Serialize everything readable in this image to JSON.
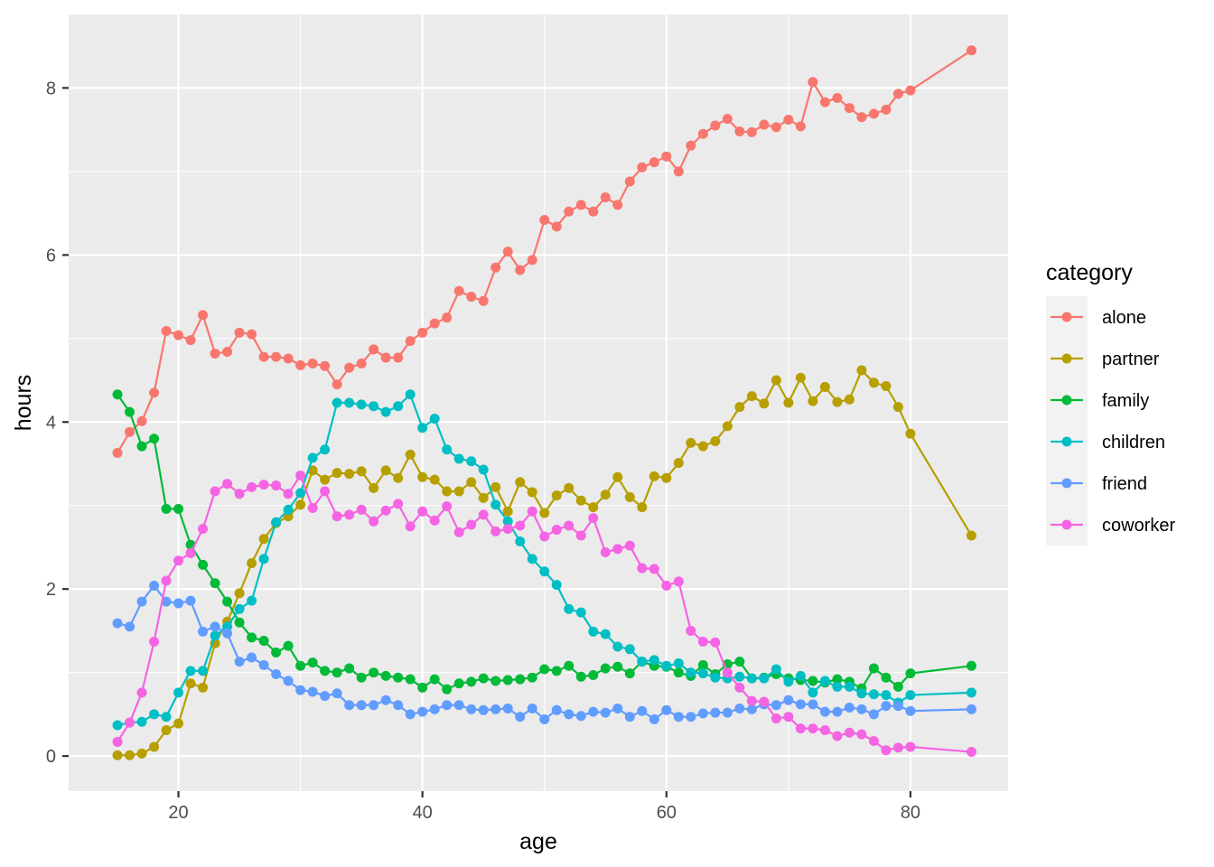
{
  "chart_data": {
    "type": "line",
    "xlabel": "age",
    "ylabel": "hours",
    "xlim": [
      11,
      88
    ],
    "ylim": [
      -0.42,
      8.88
    ],
    "xticks": [
      20,
      40,
      60,
      80
    ],
    "yticks": [
      0,
      2,
      4,
      6,
      8
    ],
    "grid": true,
    "legend": {
      "title": "category",
      "position": "right"
    },
    "x": [
      15,
      16,
      17,
      18,
      19,
      20,
      21,
      22,
      23,
      24,
      25,
      26,
      27,
      28,
      29,
      30,
      31,
      32,
      33,
      34,
      35,
      36,
      37,
      38,
      39,
      40,
      41,
      42,
      43,
      44,
      45,
      46,
      47,
      48,
      49,
      50,
      51,
      52,
      53,
      54,
      55,
      56,
      57,
      58,
      59,
      60,
      61,
      62,
      63,
      64,
      65,
      66,
      67,
      68,
      69,
      70,
      71,
      72,
      73,
      74,
      75,
      76,
      77,
      78,
      79,
      80,
      85
    ],
    "series": [
      {
        "name": "alone",
        "color": "#F8766D",
        "values": [
          3.63,
          3.88,
          4.01,
          4.35,
          5.09,
          5.04,
          4.98,
          5.28,
          4.82,
          4.84,
          5.07,
          5.05,
          4.78,
          4.78,
          4.76,
          4.68,
          4.7,
          4.67,
          4.45,
          4.65,
          4.7,
          4.87,
          4.77,
          4.77,
          4.97,
          5.07,
          5.18,
          5.25,
          5.57,
          5.5,
          5.45,
          5.85,
          6.04,
          5.82,
          5.94,
          6.42,
          6.34,
          6.52,
          6.6,
          6.52,
          6.69,
          6.6,
          6.88,
          7.05,
          7.11,
          7.18,
          7.0,
          7.31,
          7.45,
          7.55,
          7.63,
          7.48,
          7.47,
          7.56,
          7.53,
          7.62,
          7.54,
          8.07,
          7.83,
          7.88,
          7.76,
          7.65,
          7.69,
          7.74,
          7.93,
          7.97,
          8.45
        ]
      },
      {
        "name": "partner",
        "color": "#B79F00",
        "values": [
          0.01,
          0.01,
          0.03,
          0.11,
          0.31,
          0.39,
          0.87,
          0.82,
          1.35,
          1.61,
          1.95,
          2.31,
          2.6,
          2.79,
          2.87,
          3.01,
          3.42,
          3.31,
          3.39,
          3.38,
          3.41,
          3.21,
          3.42,
          3.33,
          3.61,
          3.34,
          3.31,
          3.17,
          3.17,
          3.28,
          3.09,
          3.22,
          2.93,
          3.28,
          3.16,
          2.91,
          3.12,
          3.21,
          3.06,
          2.98,
          3.13,
          3.34,
          3.1,
          2.98,
          3.35,
          3.33,
          3.51,
          3.75,
          3.71,
          3.77,
          3.95,
          4.18,
          4.31,
          4.22,
          4.5,
          4.23,
          4.53,
          4.25,
          4.42,
          4.24,
          4.27,
          4.62,
          4.47,
          4.43,
          4.18,
          3.86,
          2.64
        ]
      },
      {
        "name": "family",
        "color": "#00BA38",
        "values": [
          4.33,
          4.12,
          3.71,
          3.8,
          2.96,
          2.96,
          2.53,
          2.29,
          2.07,
          1.85,
          1.6,
          1.42,
          1.38,
          1.24,
          1.32,
          1.08,
          1.12,
          1.02,
          1.0,
          1.05,
          0.94,
          1.0,
          0.96,
          0.94,
          0.92,
          0.82,
          0.92,
          0.8,
          0.87,
          0.89,
          0.93,
          0.9,
          0.91,
          0.92,
          0.94,
          1.04,
          1.02,
          1.08,
          0.95,
          0.97,
          1.05,
          1.07,
          0.99,
          1.13,
          1.08,
          1.07,
          1.0,
          0.96,
          1.09,
          0.98,
          1.1,
          1.13,
          0.93,
          0.94,
          0.98,
          0.93,
          0.91,
          0.9,
          0.88,
          0.92,
          0.89,
          0.81,
          1.05,
          0.94,
          0.83,
          0.99,
          1.08
        ]
      },
      {
        "name": "children",
        "color": "#00BFC4",
        "values": [
          0.37,
          0.4,
          0.41,
          0.5,
          0.47,
          0.76,
          1.02,
          1.02,
          1.44,
          1.55,
          1.76,
          1.86,
          2.36,
          2.8,
          2.95,
          3.15,
          3.57,
          3.67,
          4.23,
          4.23,
          4.21,
          4.19,
          4.12,
          4.19,
          4.33,
          3.93,
          4.04,
          3.67,
          3.56,
          3.53,
          3.43,
          3.01,
          2.81,
          2.57,
          2.36,
          2.21,
          2.05,
          1.76,
          1.72,
          1.49,
          1.46,
          1.31,
          1.28,
          1.13,
          1.15,
          1.08,
          1.11,
          1.0,
          0.99,
          0.94,
          0.93,
          0.95,
          0.93,
          0.93,
          1.04,
          0.89,
          0.96,
          0.76,
          0.9,
          0.83,
          0.83,
          0.75,
          0.74,
          0.73,
          0.64,
          0.73,
          0.76
        ]
      },
      {
        "name": "friend",
        "color": "#619CFF",
        "values": [
          1.59,
          1.55,
          1.85,
          2.04,
          1.85,
          1.83,
          1.86,
          1.49,
          1.55,
          1.47,
          1.13,
          1.18,
          1.09,
          0.98,
          0.9,
          0.79,
          0.77,
          0.72,
          0.75,
          0.61,
          0.61,
          0.61,
          0.67,
          0.61,
          0.5,
          0.53,
          0.56,
          0.61,
          0.61,
          0.56,
          0.55,
          0.56,
          0.57,
          0.47,
          0.57,
          0.44,
          0.55,
          0.5,
          0.48,
          0.53,
          0.52,
          0.57,
          0.47,
          0.54,
          0.44,
          0.55,
          0.47,
          0.47,
          0.51,
          0.52,
          0.52,
          0.57,
          0.56,
          0.62,
          0.61,
          0.67,
          0.62,
          0.62,
          0.53,
          0.53,
          0.58,
          0.56,
          0.5,
          0.6,
          0.6,
          0.54,
          0.56
        ]
      },
      {
        "name": "coworker",
        "color": "#F564E3",
        "values": [
          0.17,
          0.4,
          0.76,
          1.37,
          2.1,
          2.34,
          2.43,
          2.72,
          3.17,
          3.26,
          3.14,
          3.22,
          3.25,
          3.24,
          3.14,
          3.36,
          2.97,
          3.17,
          2.87,
          2.89,
          2.95,
          2.81,
          2.94,
          3.02,
          2.75,
          2.93,
          2.82,
          2.99,
          2.68,
          2.77,
          2.89,
          2.69,
          2.72,
          2.76,
          2.93,
          2.63,
          2.71,
          2.76,
          2.64,
          2.85,
          2.44,
          2.48,
          2.52,
          2.25,
          2.24,
          2.04,
          2.09,
          1.5,
          1.37,
          1.36,
          1.0,
          0.82,
          0.66,
          0.65,
          0.45,
          0.47,
          0.33,
          0.33,
          0.31,
          0.24,
          0.28,
          0.26,
          0.18,
          0.07,
          0.1,
          0.11,
          0.05
        ]
      }
    ]
  }
}
